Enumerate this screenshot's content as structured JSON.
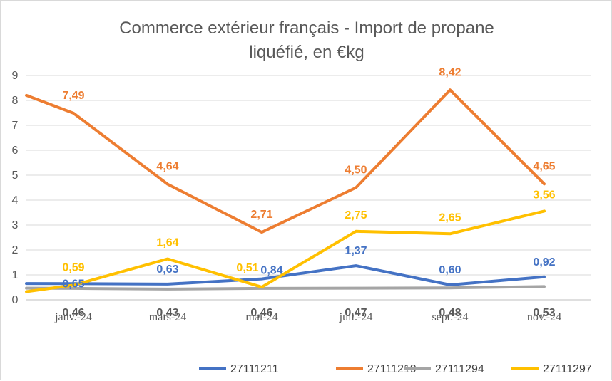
{
  "chart_data": {
    "type": "line",
    "title": "Commerce extérieur français - Import de propane",
    "title_line2": "liquéfié, en €kg",
    "xlabel": "",
    "ylabel": "",
    "ylim": [
      0,
      9
    ],
    "yticks": [
      "0",
      "1",
      "2",
      "3",
      "4",
      "5",
      "6",
      "7",
      "8",
      "9"
    ],
    "grid": true,
    "legend_position": "bottom-right",
    "x_tick_labels": [
      "janv.-24",
      "mars-24",
      "mai-24",
      "juil.-24",
      "sept.-24",
      "nov.-24"
    ],
    "series": [
      {
        "name": "27111211",
        "color": "#4472C4",
        "values": [
          0.65,
          0.63,
          0.84,
          1.37,
          0.6,
          0.92
        ],
        "labels": [
          "0,65",
          "0,63",
          "0,84",
          "1,37",
          "0,60",
          "0,92"
        ]
      },
      {
        "name": "27111219",
        "color": "#ED7D31",
        "values": [
          7.49,
          4.64,
          2.71,
          4.5,
          8.42,
          4.65
        ],
        "labels": [
          "7,49",
          "4,64",
          "2,71",
          "4,50",
          "8,42",
          "4,65"
        ]
      },
      {
        "name": "27111294",
        "color": "#A5A5A5",
        "values": [
          0.46,
          0.43,
          0.46,
          0.47,
          0.48,
          0.53
        ],
        "labels": [
          "0,46",
          "0,43",
          "0,46",
          "0,47",
          "0,48",
          "0,53"
        ]
      },
      {
        "name": "27111297",
        "color": "#FFC000",
        "values": [
          0.59,
          1.64,
          0.51,
          2.75,
          2.65,
          3.56
        ],
        "labels": [
          "0,59",
          "1,64",
          "0,51",
          "2,75",
          "2,65",
          "3,56"
        ]
      }
    ]
  }
}
